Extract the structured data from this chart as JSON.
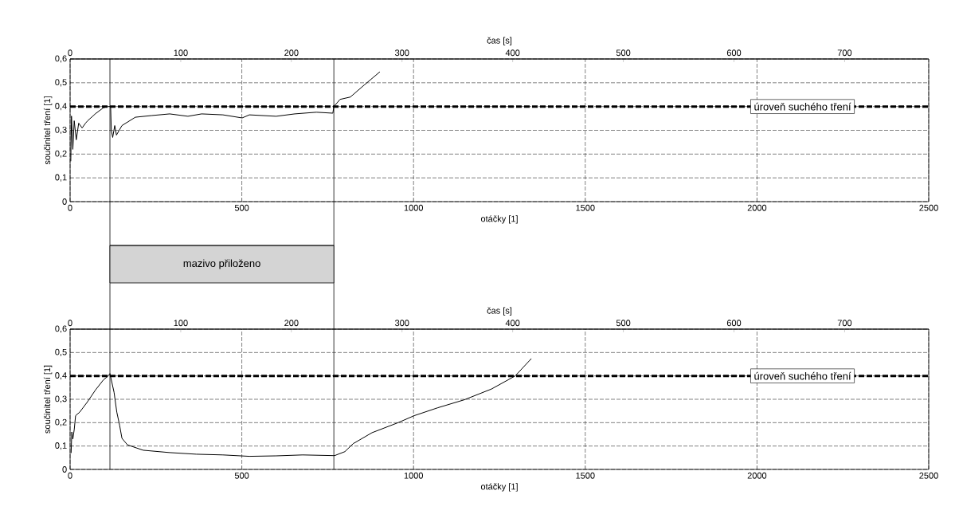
{
  "chart_data": [
    {
      "type": "line",
      "xlabel": "otáčky [1]",
      "ylabel": "součinitel tření [1]",
      "x2label": "čas [s]",
      "xlim": [
        0,
        2500
      ],
      "xticks": [
        0,
        500,
        1000,
        1500,
        2000,
        2500
      ],
      "x2lim": [
        0,
        776
      ],
      "x2ticks": [
        0,
        100,
        200,
        300,
        400,
        500,
        600,
        700
      ],
      "ylim": [
        0,
        0.6
      ],
      "yticks": [
        {
          "value": 0,
          "label": "0"
        },
        {
          "value": 0.1,
          "label": "0,1"
        },
        {
          "value": 0.2,
          "label": "0,2"
        },
        {
          "value": 0.3,
          "label": "0,3"
        },
        {
          "value": 0.4,
          "label": "0,4"
        },
        {
          "value": 0.5,
          "label": "0,5"
        },
        {
          "value": 0.6,
          "label": "0,6"
        }
      ],
      "grid": true,
      "ref_lines": [
        {
          "axis": "y",
          "value": 0.4,
          "label": "úroveň suchého tření",
          "color": "#000000",
          "line_style": "dashed"
        },
        {
          "axis": "x",
          "value": 116,
          "color": "#000000",
          "line_style": "solid"
        },
        {
          "axis": "x",
          "value": 768,
          "color": "#000000",
          "line_style": "solid"
        }
      ],
      "series": [
        {
          "color": "#000000",
          "x": [
            2,
            4,
            8,
            12,
            18,
            25,
            35,
            45,
            51,
            74,
            97,
            111,
            118,
            120,
            124,
            130,
            135,
            151,
            190,
            237,
            290,
            343,
            383,
            445,
            501,
            522,
            600,
            654,
            717,
            765,
            768,
            786,
            816,
            856,
            902
          ],
          "values": [
            0.17,
            0.36,
            0.22,
            0.34,
            0.26,
            0.33,
            0.31,
            0.33,
            0.34,
            0.37,
            0.395,
            0.4,
            0.4,
            0.3,
            0.27,
            0.32,
            0.28,
            0.32,
            0.355,
            0.362,
            0.369,
            0.359,
            0.369,
            0.365,
            0.352,
            0.365,
            0.359,
            0.369,
            0.376,
            0.372,
            0.4,
            0.43,
            0.44,
            0.49,
            0.546
          ]
        }
      ]
    },
    {
      "type": "line",
      "xlabel": "otáčky [1]",
      "ylabel": "součinitel tření [1]",
      "x2label": "čas [s]",
      "xlim": [
        0,
        2500
      ],
      "xticks": [
        0,
        500,
        1000,
        1500,
        2000,
        2500
      ],
      "x2lim": [
        0,
        776
      ],
      "x2ticks": [
        0,
        100,
        200,
        300,
        400,
        500,
        600,
        700
      ],
      "ylim": [
        0,
        0.6
      ],
      "yticks": [
        {
          "value": 0,
          "label": "0"
        },
        {
          "value": 0.1,
          "label": "0,1"
        },
        {
          "value": 0.2,
          "label": "0,2"
        },
        {
          "value": 0.3,
          "label": "0,3"
        },
        {
          "value": 0.4,
          "label": "0,4"
        },
        {
          "value": 0.5,
          "label": "0,5"
        },
        {
          "value": 0.6,
          "label": "0,6"
        }
      ],
      "grid": true,
      "annotations": [
        "mazivo přiloženo"
      ],
      "ref_lines": [
        {
          "axis": "y",
          "value": 0.4,
          "label": "úroveň suchého tření",
          "color": "#000000",
          "line_style": "dashed"
        },
        {
          "axis": "x",
          "value": 116,
          "color": "#000000",
          "line_style": "solid"
        },
        {
          "axis": "x",
          "value": 768,
          "color": "#000000",
          "line_style": "solid"
        }
      ],
      "series": [
        {
          "color": "#000000",
          "x": [
            3,
            5,
            8,
            12,
            16,
            28,
            51,
            74,
            97,
            111,
            116,
            128,
            136,
            144,
            151,
            167,
            213,
            290,
            368,
            445,
            522,
            600,
            677,
            770,
            800,
            824,
            879,
            955,
            1002,
            1071,
            1148,
            1227,
            1296,
            1343
          ],
          "values": [
            0.07,
            0.16,
            0.13,
            0.17,
            0.23,
            0.245,
            0.29,
            0.34,
            0.383,
            0.4,
            0.41,
            0.33,
            0.245,
            0.19,
            0.133,
            0.105,
            0.082,
            0.072,
            0.065,
            0.062,
            0.056,
            0.058,
            0.062,
            0.059,
            0.076,
            0.11,
            0.157,
            0.2,
            0.23,
            0.264,
            0.298,
            0.344,
            0.4,
            0.474
          ]
        }
      ]
    }
  ]
}
